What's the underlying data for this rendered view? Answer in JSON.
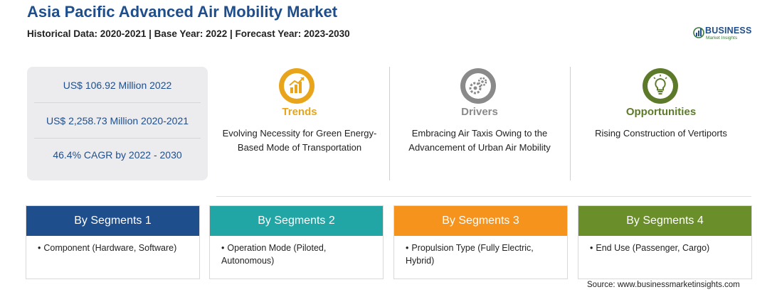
{
  "header": {
    "title": "Asia Pacific Advanced Air Mobility Market",
    "subtitle": "Historical Data: 2020-2021 | Base Year: 2022 | Forecast Year: 2023-2030"
  },
  "logo": {
    "name": "BUSINESS",
    "tagline": "Market Insights"
  },
  "stats": [
    "US$ 106.92 Million 2022",
    "US$ 2,258.73 Million 2020-2021",
    "46.4% CAGR by 2022 - 2030"
  ],
  "factors": [
    {
      "title": "Trends",
      "text": "Evolving Necessity for Green Energy-Based Mode of Transportation",
      "color": "#e8a51c",
      "icon": "growth-chart-icon"
    },
    {
      "title": "Drivers",
      "text": "Embracing Air Taxis Owing to the Advancement of Urban Air Mobility",
      "color": "#8a8a8a",
      "icon": "gears-icon"
    },
    {
      "title": "Opportunities",
      "text": "Rising Construction of Vertiports",
      "color": "#5d7a2a",
      "icon": "lightbulb-icon"
    }
  ],
  "segments": [
    {
      "label": "By Segments 1",
      "item": "Component (Hardware, Software)",
      "color": "#1f4e8c"
    },
    {
      "label": "By Segments 2",
      "item": "Operation Mode (Piloted, Autonomous)",
      "color": "#21a5a5"
    },
    {
      "label": "By Segments 3",
      "item": "Propulsion Type (Fully Electric, Hybrid)",
      "color": "#f5931d"
    },
    {
      "label": "By Segments 4",
      "item": "End Use (Passenger, Cargo)",
      "color": "#6a8f2a"
    }
  ],
  "source": "Source: www.businessmarketinsights.com"
}
